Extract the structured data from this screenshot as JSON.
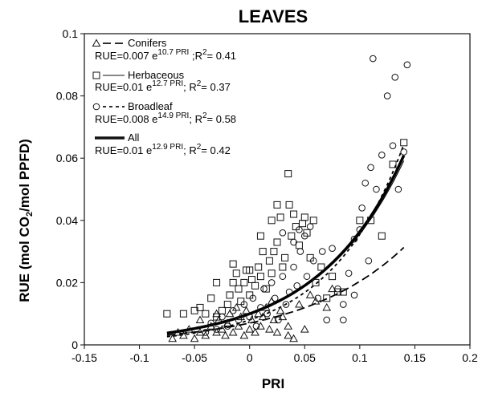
{
  "chart_data": {
    "type": "scatter",
    "title": "LEAVES",
    "xlabel": "PRI",
    "ylabel_parts": [
      "RUE (mol CO",
      "2",
      "/mol PPFD)"
    ],
    "xlim": [
      -0.15,
      0.2
    ],
    "ylim": [
      0,
      0.1
    ],
    "x_ticks": [
      -0.15,
      -0.1,
      -0.05,
      0,
      0.05,
      0.1,
      0.15,
      0.2
    ],
    "x_tick_labels": [
      "-0.15",
      "-0.1",
      "-0.05",
      "0",
      "0.05",
      "0.1",
      "0.15",
      "0.2"
    ],
    "y_ticks": [
      0,
      0.02,
      0.04,
      0.06,
      0.08,
      0.1
    ],
    "y_tick_labels": [
      "0",
      "0.02",
      "0.04",
      "0.06",
      "0.08",
      "0.1"
    ],
    "legend_placement": "top-left",
    "legend": [
      {
        "name": "Conifers",
        "eq_pre": "RUE=0.007 e",
        "eq_exp": "10.7 PRI",
        "eq_mid": " ;R",
        "eq_r2": "2",
        "eq_post": "= 0.41"
      },
      {
        "name": "Herbaceous",
        "eq_pre": "RUE=0.01 e",
        "eq_exp": "12.7 PRI",
        "eq_mid": "; R",
        "eq_r2": "2",
        "eq_post": "= 0.37"
      },
      {
        "name": "Broadleaf",
        "eq_pre": "RUE=0.008 e",
        "eq_exp": "14.9 PRI",
        "eq_mid": "; R",
        "eq_r2": "2",
        "eq_post": "= 0.58"
      },
      {
        "name": "All",
        "eq_pre": "RUE=0.01 e",
        "eq_exp": "12.9 PRI",
        "eq_mid": "; R",
        "eq_r2": "2",
        "eq_post": "= 0.42"
      }
    ],
    "fits": [
      {
        "series": "Conifers",
        "a": 0.007,
        "b": 10.7,
        "x_range": [
          -0.075,
          0.14
        ],
        "style": "dashed-long"
      },
      {
        "series": "Herbaceous",
        "a": 0.01,
        "b": 12.7,
        "x_range": [
          -0.075,
          0.14
        ],
        "style": "thin"
      },
      {
        "series": "Broadleaf",
        "a": 0.008,
        "b": 14.9,
        "x_range": [
          -0.075,
          0.14
        ],
        "style": "dashed-short"
      },
      {
        "series": "All",
        "a": 0.01,
        "b": 12.9,
        "x_range": [
          -0.075,
          0.14
        ],
        "style": "thick"
      }
    ],
    "series": [
      {
        "name": "Conifers",
        "marker": "triangle",
        "points": [
          [
            -0.07,
            0.002
          ],
          [
            -0.065,
            0.004
          ],
          [
            -0.06,
            0.003
          ],
          [
            -0.055,
            0.005
          ],
          [
            -0.05,
            0.002
          ],
          [
            -0.045,
            0.004
          ],
          [
            -0.04,
            0.003
          ],
          [
            -0.035,
            0.006
          ],
          [
            -0.03,
            0.004
          ],
          [
            -0.028,
            0.008
          ],
          [
            -0.025,
            0.005
          ],
          [
            -0.022,
            0.003
          ],
          [
            -0.02,
            0.007
          ],
          [
            -0.018,
            0.01
          ],
          [
            -0.015,
            0.004
          ],
          [
            -0.012,
            0.012
          ],
          [
            -0.01,
            0.006
          ],
          [
            -0.008,
            0.009
          ],
          [
            -0.005,
            0.003
          ],
          [
            -0.003,
            0.011
          ],
          [
            0,
            0.005
          ],
          [
            0.002,
            0.008
          ],
          [
            0.005,
            0.004
          ],
          [
            0.008,
            0.01
          ],
          [
            0.01,
            0.006
          ],
          [
            0.012,
            0.009
          ],
          [
            0.015,
            0.012
          ],
          [
            0.018,
            0.005
          ],
          [
            0.02,
            0.014
          ],
          [
            0.022,
            0.008
          ],
          [
            0.025,
            0.004
          ],
          [
            0.028,
            0.011
          ],
          [
            0.03,
            0.009
          ],
          [
            0.035,
            0.006
          ],
          [
            0.04,
            0.002
          ],
          [
            0.045,
            0.013
          ],
          [
            0.05,
            0.005
          ],
          [
            0.055,
            0.016
          ],
          [
            0.06,
            0.014
          ],
          [
            0.07,
            0.012
          ],
          [
            0.075,
            0.018
          ],
          [
            -0.03,
            0.01
          ],
          [
            -0.045,
            0.008
          ],
          [
            0.035,
            0.003
          ]
        ]
      },
      {
        "name": "Herbaceous",
        "marker": "square",
        "points": [
          [
            -0.075,
            0.01
          ],
          [
            -0.06,
            0.01
          ],
          [
            -0.05,
            0.011
          ],
          [
            -0.045,
            0.012
          ],
          [
            -0.04,
            0.01
          ],
          [
            -0.035,
            0.015
          ],
          [
            -0.03,
            0.009
          ],
          [
            -0.025,
            0.011
          ],
          [
            -0.02,
            0.013
          ],
          [
            -0.018,
            0.016
          ],
          [
            -0.015,
            0.02
          ],
          [
            -0.012,
            0.023
          ],
          [
            -0.01,
            0.018
          ],
          [
            -0.008,
            0.014
          ],
          [
            -0.005,
            0.02
          ],
          [
            -0.003,
            0.024
          ],
          [
            0,
            0.016
          ],
          [
            0.002,
            0.021
          ],
          [
            0.005,
            0.019
          ],
          [
            0.008,
            0.025
          ],
          [
            0.01,
            0.022
          ],
          [
            0.012,
            0.03
          ],
          [
            0.015,
            0.018
          ],
          [
            0.018,
            0.027
          ],
          [
            0.02,
            0.023
          ],
          [
            0.022,
            0.03
          ],
          [
            0.025,
            0.033
          ],
          [
            0.028,
            0.041
          ],
          [
            0.03,
            0.025
          ],
          [
            0.032,
            0.028
          ],
          [
            0.035,
            0.055
          ],
          [
            0.036,
            0.045
          ],
          [
            0.038,
            0.035
          ],
          [
            0.04,
            0.042
          ],
          [
            0.042,
            0.038
          ],
          [
            0.045,
            0.032
          ],
          [
            0.048,
            0.039
          ],
          [
            0.05,
            0.041
          ],
          [
            0.052,
            0.036
          ],
          [
            0.055,
            0.028
          ],
          [
            0.058,
            0.04
          ],
          [
            0.06,
            0.02
          ],
          [
            0.065,
            0.025
          ],
          [
            0.07,
            0.015
          ],
          [
            0.075,
            0.022
          ],
          [
            0.08,
            0.017
          ],
          [
            0.085,
            0.017
          ],
          [
            0.1,
            0.04
          ],
          [
            0.11,
            0.04
          ],
          [
            0.12,
            0.035
          ],
          [
            0.13,
            0.058
          ],
          [
            0.14,
            0.065
          ],
          [
            -0.03,
            0.02
          ],
          [
            -0.015,
            0.026
          ],
          [
            0.0,
            0.024
          ],
          [
            0.01,
            0.035
          ],
          [
            0.02,
            0.04
          ],
          [
            0.025,
            0.045
          ]
        ]
      },
      {
        "name": "Broadleaf",
        "marker": "circle",
        "points": [
          [
            -0.04,
            0.004
          ],
          [
            -0.035,
            0.007
          ],
          [
            -0.03,
            0.005
          ],
          [
            -0.025,
            0.009
          ],
          [
            -0.02,
            0.006
          ],
          [
            -0.015,
            0.011
          ],
          [
            -0.01,
            0.008
          ],
          [
            -0.005,
            0.013
          ],
          [
            0,
            0.009
          ],
          [
            0.003,
            0.015
          ],
          [
            0.006,
            0.006
          ],
          [
            0.01,
            0.012
          ],
          [
            0.013,
            0.018
          ],
          [
            0.016,
            0.01
          ],
          [
            0.02,
            0.02
          ],
          [
            0.023,
            0.015
          ],
          [
            0.026,
            0.008
          ],
          [
            0.03,
            0.022
          ],
          [
            0.033,
            0.013
          ],
          [
            0.036,
            0.017
          ],
          [
            0.04,
            0.025
          ],
          [
            0.043,
            0.019
          ],
          [
            0.046,
            0.03
          ],
          [
            0.05,
            0.035
          ],
          [
            0.052,
            0.022
          ],
          [
            0.055,
            0.038
          ],
          [
            0.058,
            0.027
          ],
          [
            0.062,
            0.015
          ],
          [
            0.066,
            0.03
          ],
          [
            0.07,
            0.008
          ],
          [
            0.075,
            0.031
          ],
          [
            0.08,
            0.018
          ],
          [
            0.085,
            0.013
          ],
          [
            0.09,
            0.023
          ],
          [
            0.095,
            0.034
          ],
          [
            0.1,
            0.037
          ],
          [
            0.102,
            0.044
          ],
          [
            0.105,
            0.052
          ],
          [
            0.108,
            0.027
          ],
          [
            0.11,
            0.057
          ],
          [
            0.112,
            0.092
          ],
          [
            0.115,
            0.05
          ],
          [
            0.12,
            0.061
          ],
          [
            0.125,
            0.08
          ],
          [
            0.13,
            0.064
          ],
          [
            0.132,
            0.086
          ],
          [
            0.135,
            0.05
          ],
          [
            0.14,
            0.062
          ],
          [
            0.143,
            0.09
          ],
          [
            0.045,
            0.037
          ],
          [
            0.04,
            0.033
          ],
          [
            0.03,
            0.036
          ],
          [
            0.095,
            0.016
          ],
          [
            0.085,
            0.008
          ]
        ]
      }
    ]
  },
  "colors": {
    "ink": "#111111",
    "background": "#ffffff",
    "fit_all": "#000000"
  }
}
